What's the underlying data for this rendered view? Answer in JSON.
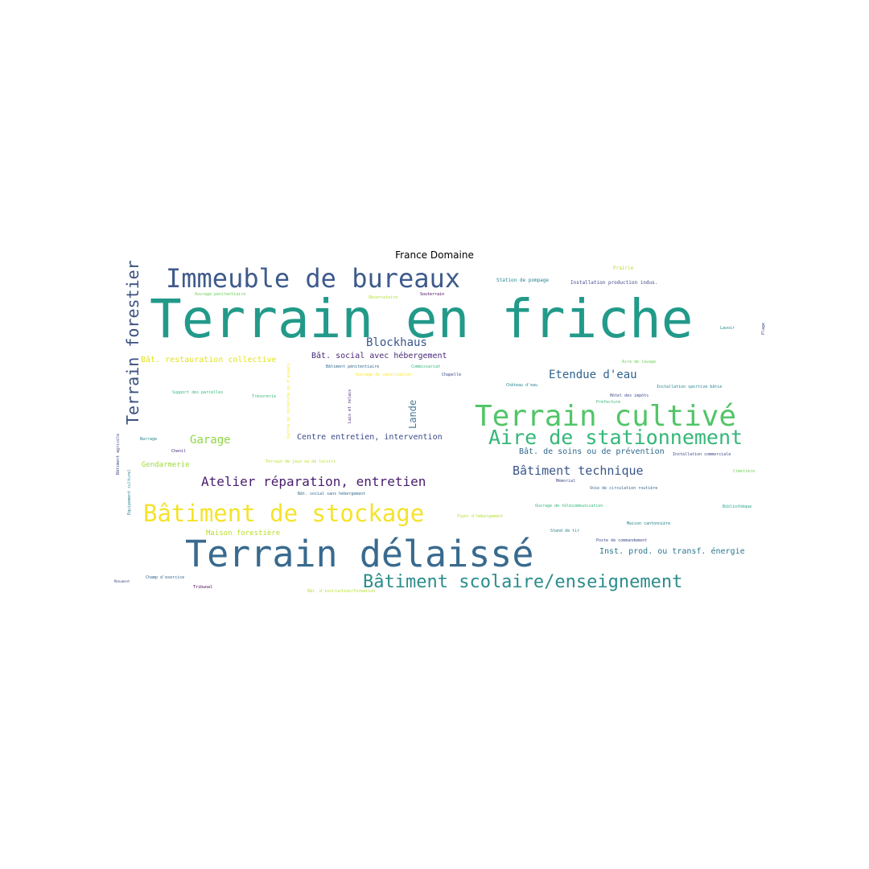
{
  "title": "France Domaine",
  "colors": {
    "dark_purple": "#440154",
    "purple": "#482878",
    "indigo": "#3e4989",
    "blue": "#31688e",
    "teal_blue": "#26828e",
    "teal": "#1f9e89",
    "green_teal": "#35b779",
    "green": "#6ece58",
    "lime": "#b5de2b",
    "yellow": "#fde725"
  },
  "words": {
    "terrain_en_friche": "Terrain en friche",
    "immeuble_de_bureaux": "Immeuble de bureaux",
    "terrain_forestier": "Terrain forestier",
    "terrain_cultive": "Terrain cultivé",
    "aire_de_stationnement": "Aire de stationnement",
    "terrain_delaisse": "Terrain délaissé",
    "batiment_de_stockage": "Bâtiment de stockage",
    "batiment_scolaire": "Bâtiment scolaire/enseignement",
    "atelier_reparation": "Atelier réparation, entretien",
    "batiment_technique": "Bâtiment technique",
    "etendue_d_eau": "Etendue d'eau",
    "blockhaus": "Blockhaus",
    "garage": "Garage",
    "lande": "Lande",
    "centre_entretien": "Centre entretien, intervention",
    "bat_soins": "Bât. de soins ou de prévention",
    "bat_social_avec": "Bât. social avec hébergement",
    "bat_restauration": "Bât. restauration collective",
    "gendarmerie": "Gendarmerie",
    "maison_forestiere": "Maison forestière",
    "inst_prod_energie": "Inst. prod. ou transf. énergie",
    "prairie": "Prairie",
    "station_de_pompage": "Station de pompage",
    "installation_production": "Installation production indus.",
    "ouvrage_penitentiaire": "Ouvrage pénitentiaire",
    "observatoire": "Observatoire",
    "souterrain": "Souterrain",
    "lavoir": "Lavoir",
    "plage": "Plage",
    "batiment_penitentiaire": "Bâtiment pénitentiaire",
    "commissariat": "Commissariat",
    "ouvrage_canalisation": "Ouvrage de canalisation",
    "chapelle": "Chapelle",
    "aire_de_lavage": "Aire de lavage",
    "chateau_d_eau": "Château d'eau",
    "installation_sportive": "Installation sportive bâtie",
    "support_parcelles": "Support des parcelles",
    "tresorerie": "Trésorerie",
    "hotel_des_impots": "Hôtel des impôts",
    "prefecture": "Préfecture",
    "lais_relais": "Lais et relais",
    "centre_recherche": "Centre de recherche ou d'essais",
    "barrage": "Barrage",
    "chenil": "Chenil",
    "installation_commerciale": "Installation commerciale",
    "batiment_agricole": "Bâtiment agricole",
    "equipement_culturel": "Equipement culturel",
    "terrain_de_jeux": "Terrain de jeux ou de loisirs",
    "memorial": "Mémorial",
    "cimetiere": "Cimetière",
    "voie_circulation": "Voie de circulation routière",
    "bat_social_sans": "Bât. social sans hébergement",
    "ouvrage_telecom": "Ouvrage de télécommunication",
    "bibliotheque": "Bibliothèque",
    "foyer_hebergement": "Foyer d'hébergement",
    "maison_cantonniere": "Maison cantonnière",
    "stand_de_tir": "Stand de tir",
    "poste_commandement": "Poste de commandement",
    "monument": "Monument",
    "champ_exercice": "Champ d'exercice",
    "tribunal": "Tribunal",
    "bat_instruction": "Bât. d'instruction/formation"
  }
}
